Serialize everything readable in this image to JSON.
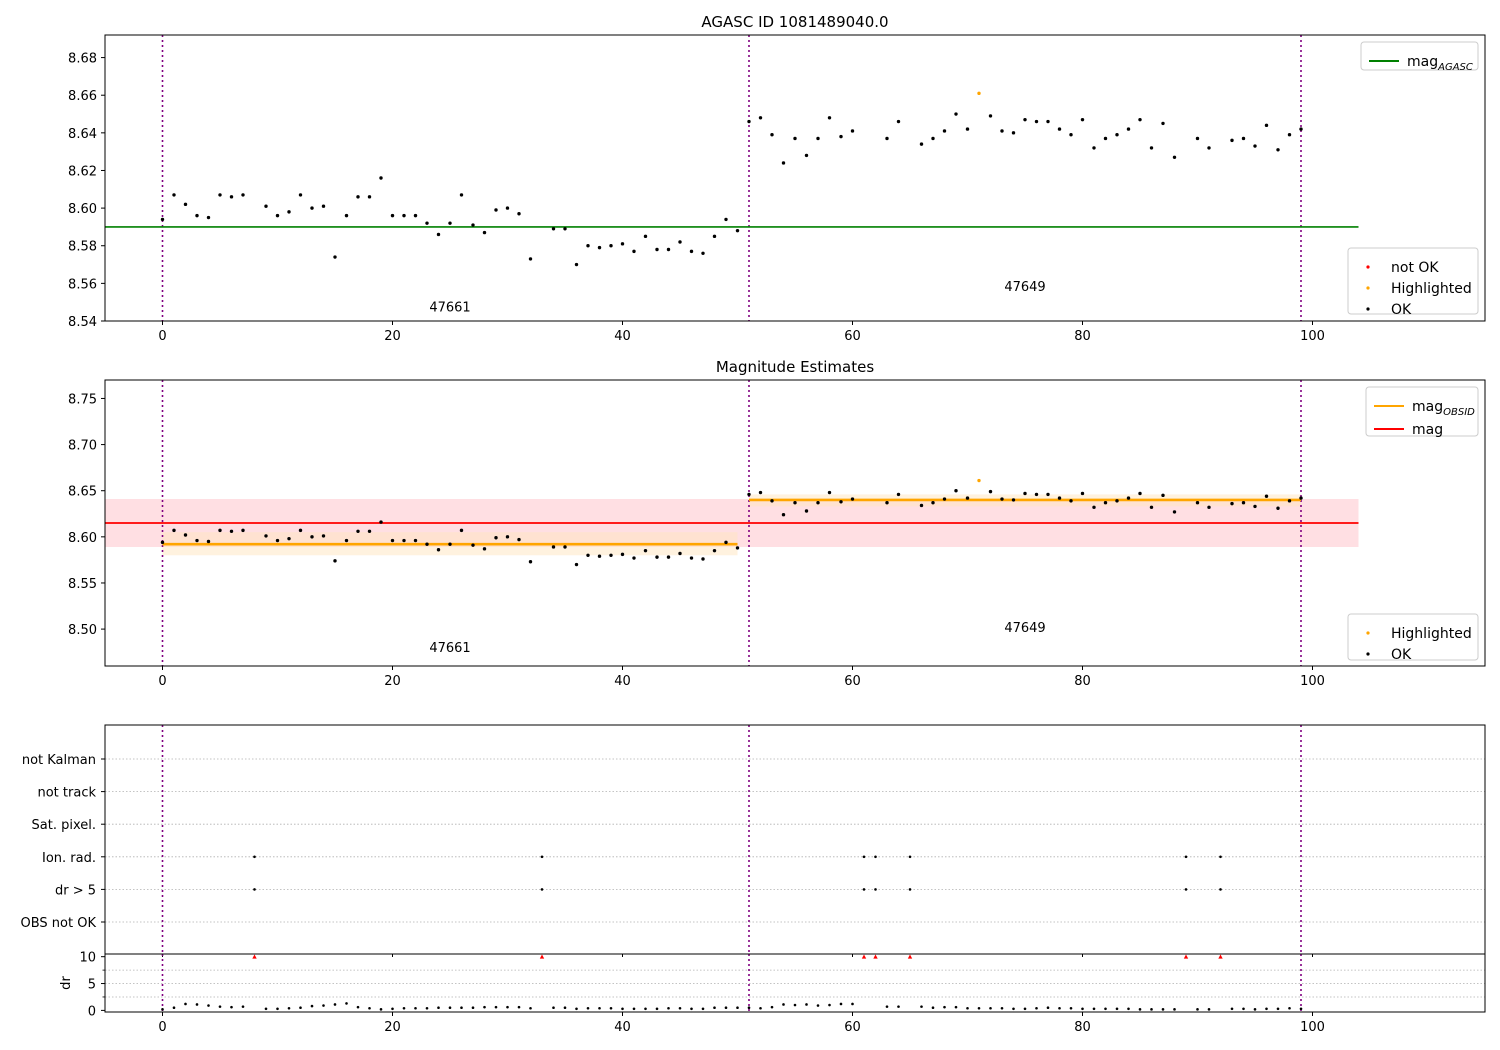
{
  "chart_data": [
    {
      "type": "scatter",
      "title": "AGASC ID 1081489040.0",
      "xlim": [
        -5,
        115
      ],
      "ylim": [
        8.54,
        8.692
      ],
      "xticks": [
        0,
        20,
        40,
        60,
        80,
        100
      ],
      "yticks": [
        8.54,
        8.56,
        8.58,
        8.6,
        8.62,
        8.64,
        8.66,
        8.68
      ],
      "vlines": [
        0,
        51,
        99
      ],
      "hlines": [
        {
          "name": "mag_AGASC",
          "y": 8.59,
          "x0": -5,
          "x1": 104,
          "color": "#008000"
        }
      ],
      "annotations": [
        {
          "text": "47661",
          "x": 25,
          "y": 8.545
        },
        {
          "text": "47649",
          "x": 75,
          "y": 8.556
        }
      ],
      "legend_lines": [
        {
          "base": "mag",
          "sub": "AGASC",
          "color": "#008000"
        }
      ],
      "legend_points": [
        {
          "label": "not OK",
          "color": "#ff0000"
        },
        {
          "label": "Highlighted",
          "color": "#ffa500"
        },
        {
          "label": "OK",
          "color": "#000000"
        }
      ],
      "highlighted": [
        {
          "x": 71,
          "y": 8.661
        }
      ],
      "series": [
        {
          "name": "OK",
          "color": "#000000",
          "x": [
            0,
            1,
            2,
            3,
            4,
            5,
            6,
            7,
            9,
            10,
            11,
            12,
            13,
            14,
            15,
            16,
            17,
            18,
            19,
            20,
            21,
            22,
            23,
            24,
            25,
            26,
            27,
            28,
            29,
            30,
            31,
            32,
            34,
            35,
            36,
            37,
            38,
            39,
            40,
            41,
            42,
            43,
            44,
            45,
            46,
            47,
            48,
            49,
            50,
            51,
            52,
            53,
            54,
            55,
            56,
            57,
            58,
            59,
            60,
            63,
            64,
            66,
            67,
            68,
            69,
            70,
            72,
            73,
            74,
            75,
            76,
            77,
            78,
            79,
            80,
            81,
            82,
            83,
            84,
            85,
            86,
            87,
            88,
            90,
            91,
            93,
            94,
            95,
            96,
            97,
            98,
            99
          ],
          "y": [
            8.594,
            8.607,
            8.602,
            8.596,
            8.595,
            8.607,
            8.606,
            8.607,
            8.601,
            8.596,
            8.598,
            8.607,
            8.6,
            8.601,
            8.574,
            8.596,
            8.606,
            8.606,
            8.616,
            8.596,
            8.596,
            8.596,
            8.592,
            8.586,
            8.592,
            8.607,
            8.591,
            8.587,
            8.599,
            8.6,
            8.597,
            8.573,
            8.589,
            8.589,
            8.57,
            8.58,
            8.579,
            8.58,
            8.581,
            8.577,
            8.585,
            8.578,
            8.578,
            8.582,
            8.577,
            8.576,
            8.585,
            8.594,
            8.588,
            8.646,
            8.648,
            8.639,
            8.624,
            8.637,
            8.628,
            8.637,
            8.648,
            8.638,
            8.641,
            8.637,
            8.646,
            8.634,
            8.637,
            8.641,
            8.65,
            8.642,
            8.649,
            8.641,
            8.64,
            8.647,
            8.646,
            8.646,
            8.642,
            8.639,
            8.647,
            8.632,
            8.637,
            8.639,
            8.642,
            8.647,
            8.632,
            8.645,
            8.627,
            8.637,
            8.632,
            8.636,
            8.637,
            8.633,
            8.644,
            8.631,
            8.639,
            8.642
          ]
        }
      ]
    },
    {
      "type": "scatter",
      "title": "Magnitude Estimates",
      "xlim": [
        -5,
        115
      ],
      "ylim": [
        8.46,
        8.77
      ],
      "xticks": [
        0,
        20,
        40,
        60,
        80,
        100
      ],
      "yticks": [
        8.5,
        8.55,
        8.6,
        8.65,
        8.7,
        8.75
      ],
      "vlines": [
        0,
        51,
        99
      ],
      "bands": [
        {
          "y0": 8.589,
          "y1": 8.641,
          "x0": -5,
          "x1": 104,
          "color": "#ffc0c8"
        },
        {
          "y0": 8.58,
          "y1": 8.605,
          "x0": 0,
          "x1": 50,
          "color": "#ffe6bf"
        },
        {
          "y0": 8.633,
          "y1": 8.646,
          "x0": 51,
          "x1": 99,
          "color": "#ffe6bf"
        }
      ],
      "hlines": [
        {
          "name": "mag",
          "y": 8.615,
          "x0": -5,
          "x1": 104,
          "color": "#ff0000"
        },
        {
          "name": "mag_OBSID",
          "y": 8.592,
          "x0": 0,
          "x1": 50,
          "color": "#ffa500"
        },
        {
          "name": "mag_OBSID",
          "y": 8.64,
          "x0": 51,
          "x1": 99,
          "color": "#ffa500"
        }
      ],
      "annotations": [
        {
          "text": "47661",
          "x": 25,
          "y": 8.475
        },
        {
          "text": "47649",
          "x": 75,
          "y": 8.497
        }
      ],
      "legend_lines": [
        {
          "base": "mag",
          "sub": "OBSID",
          "color": "#ffa500"
        },
        {
          "base": "mag",
          "sub": "",
          "color": "#ff0000"
        }
      ],
      "legend_points": [
        {
          "label": "Highlighted",
          "color": "#ffa500"
        },
        {
          "label": "OK",
          "color": "#000000"
        }
      ],
      "highlighted": [
        {
          "x": 71,
          "y": 8.661
        }
      ],
      "series": [
        {
          "name": "OK",
          "color": "#000000",
          "x": [
            0,
            1,
            2,
            3,
            4,
            5,
            6,
            7,
            9,
            10,
            11,
            12,
            13,
            14,
            15,
            16,
            17,
            18,
            19,
            20,
            21,
            22,
            23,
            24,
            25,
            26,
            27,
            28,
            29,
            30,
            31,
            32,
            34,
            35,
            36,
            37,
            38,
            39,
            40,
            41,
            42,
            43,
            44,
            45,
            46,
            47,
            48,
            49,
            50,
            51,
            52,
            53,
            54,
            55,
            56,
            57,
            58,
            59,
            60,
            63,
            64,
            66,
            67,
            68,
            69,
            70,
            72,
            73,
            74,
            75,
            76,
            77,
            78,
            79,
            80,
            81,
            82,
            83,
            84,
            85,
            86,
            87,
            88,
            90,
            91,
            93,
            94,
            95,
            96,
            97,
            98,
            99
          ],
          "y": [
            8.594,
            8.607,
            8.602,
            8.596,
            8.595,
            8.607,
            8.606,
            8.607,
            8.601,
            8.596,
            8.598,
            8.607,
            8.6,
            8.601,
            8.574,
            8.596,
            8.606,
            8.606,
            8.616,
            8.596,
            8.596,
            8.596,
            8.592,
            8.586,
            8.592,
            8.607,
            8.591,
            8.587,
            8.599,
            8.6,
            8.597,
            8.573,
            8.589,
            8.589,
            8.57,
            8.58,
            8.579,
            8.58,
            8.581,
            8.577,
            8.585,
            8.578,
            8.578,
            8.582,
            8.577,
            8.576,
            8.585,
            8.594,
            8.588,
            8.646,
            8.648,
            8.639,
            8.624,
            8.637,
            8.628,
            8.637,
            8.648,
            8.638,
            8.641,
            8.637,
            8.646,
            8.634,
            8.637,
            8.641,
            8.65,
            8.642,
            8.649,
            8.641,
            8.64,
            8.647,
            8.646,
            8.646,
            8.642,
            8.639,
            8.647,
            8.632,
            8.637,
            8.639,
            8.642,
            8.647,
            8.632,
            8.645,
            8.627,
            8.637,
            8.632,
            8.636,
            8.637,
            8.633,
            8.644,
            8.631,
            8.639,
            8.642
          ]
        }
      ]
    },
    {
      "type": "scatter",
      "title": "",
      "xlim": [
        -5,
        115
      ],
      "categories": [
        "OBS not OK",
        "dr > 5",
        "Ion. rad.",
        "Sat. pixel.",
        "not track",
        "not Kalman"
      ],
      "vlines": [
        0,
        51,
        99
      ],
      "flags": [
        {
          "category": "Ion. rad.",
          "x": [
            8,
            33,
            61,
            62,
            65,
            89,
            92
          ]
        },
        {
          "category": "dr > 5",
          "x": [
            8,
            33,
            61,
            62,
            65,
            89,
            92
          ]
        }
      ]
    },
    {
      "type": "scatter",
      "title": "",
      "xlim": [
        -5,
        115
      ],
      "ylim": [
        -0.3,
        10.5
      ],
      "xticks": [
        0,
        20,
        40,
        60,
        80,
        100
      ],
      "yticks": [
        0,
        5,
        10
      ],
      "ylabel": "dr",
      "vlines": [
        0,
        51,
        99
      ],
      "clipped_x": [
        8,
        33,
        61,
        62,
        65,
        89,
        92
      ],
      "clip_value": 10,
      "series": [
        {
          "name": "dr",
          "color": "#000000",
          "x": [
            0,
            1,
            2,
            3,
            4,
            5,
            6,
            7,
            9,
            10,
            11,
            12,
            13,
            14,
            15,
            16,
            17,
            18,
            19,
            20,
            21,
            22,
            23,
            24,
            25,
            26,
            27,
            28,
            29,
            30,
            31,
            32,
            34,
            35,
            36,
            37,
            38,
            39,
            40,
            41,
            42,
            43,
            44,
            45,
            46,
            47,
            48,
            49,
            50,
            51,
            52,
            53,
            54,
            55,
            56,
            57,
            58,
            59,
            60,
            63,
            64,
            66,
            67,
            68,
            69,
            70,
            71,
            72,
            73,
            74,
            75,
            76,
            77,
            78,
            79,
            80,
            81,
            82,
            83,
            84,
            85,
            86,
            87,
            88,
            90,
            91,
            93,
            94,
            95,
            96,
            97,
            98,
            99
          ],
          "y": [
            0.2,
            0.5,
            1.2,
            1.1,
            0.9,
            0.7,
            0.6,
            0.7,
            0.3,
            0.3,
            0.4,
            0.5,
            0.8,
            0.9,
            1.1,
            1.3,
            0.6,
            0.4,
            0.2,
            0.3,
            0.4,
            0.4,
            0.4,
            0.5,
            0.5,
            0.5,
            0.5,
            0.6,
            0.6,
            0.6,
            0.6,
            0.4,
            0.5,
            0.5,
            0.3,
            0.4,
            0.4,
            0.4,
            0.3,
            0.3,
            0.3,
            0.3,
            0.4,
            0.4,
            0.3,
            0.3,
            0.5,
            0.5,
            0.5,
            0.5,
            0.4,
            0.6,
            1.1,
            1.0,
            1.1,
            0.9,
            1.0,
            1.2,
            1.2,
            0.7,
            0.7,
            0.7,
            0.5,
            0.6,
            0.6,
            0.4,
            0.4,
            0.4,
            0.4,
            0.3,
            0.3,
            0.4,
            0.5,
            0.4,
            0.4,
            0.3,
            0.3,
            0.3,
            0.3,
            0.3,
            0.2,
            0.2,
            0.2,
            0.2,
            0.2,
            0.2,
            0.3,
            0.3,
            0.2,
            0.3,
            0.3,
            0.4,
            0.3
          ]
        }
      ]
    }
  ]
}
